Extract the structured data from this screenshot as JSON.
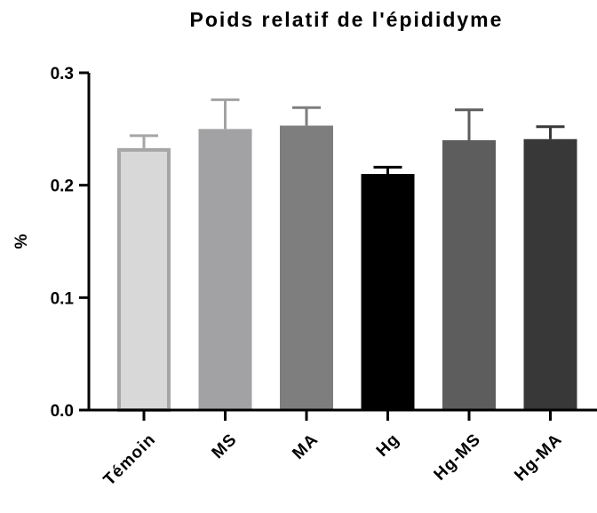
{
  "chart_data": {
    "type": "bar",
    "title": "Poids relatif de l'épididyme",
    "xlabel": "",
    "ylabel": "%",
    "ylim": [
      0,
      0.3
    ],
    "yticks": [
      0.0,
      0.1,
      0.2,
      0.3
    ],
    "ytick_labels": [
      "0.0",
      "0.1",
      "0.2",
      "0.3"
    ],
    "categories": [
      "Témoin",
      "MS",
      "MA",
      "Hg",
      "Hg-MS",
      "Hg-MA"
    ],
    "values": [
      0.233,
      0.25,
      0.253,
      0.21,
      0.24,
      0.241
    ],
    "errors": [
      0.011,
      0.026,
      0.016,
      0.006,
      0.027,
      0.011
    ],
    "colors": [
      "#d8d8d8",
      "#a2a2a4",
      "#7e7e7e",
      "#000000",
      "#5d5d5d",
      "#383838"
    ],
    "edge_colors": [
      "#a6a6a6",
      "#a2a2a4",
      "#7e7e7e",
      "#000000",
      "#5d5d5d",
      "#383838"
    ],
    "error_colors": [
      "#a6a6a6",
      "#a2a2a4",
      "#7e7e7e",
      "#000000",
      "#5d5d5d",
      "#383838"
    ],
    "grid": false,
    "legend": "none"
  }
}
